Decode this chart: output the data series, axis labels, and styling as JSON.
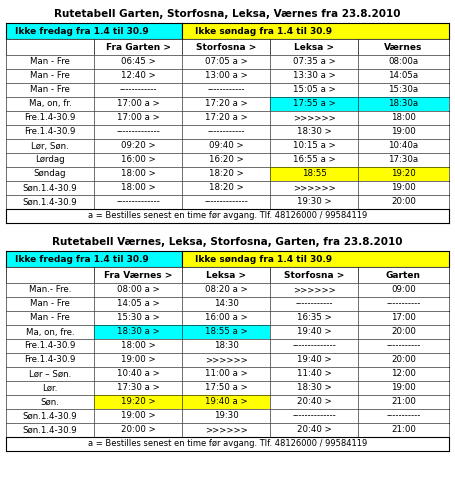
{
  "table1": {
    "title": "Rutetabell Garten, Storfosna, Leksa, Værnes fra 23.8.2010",
    "header_row1": [
      {
        "text": "Ikke fredag fra 1.4 til 30.9",
        "bg": "#00FFFF",
        "color": "black"
      },
      {
        "text": "Ikke søndag fra 1.4 til 30.9",
        "bg": "#FFFF00",
        "color": "black"
      }
    ],
    "header_row2": [
      "",
      "Fra Garten >",
      "Storfosna >",
      "Leksa >",
      "Værnes"
    ],
    "rows": [
      [
        "Man - Fre",
        "06:45 >",
        "07:05 a >",
        "07:35 a >",
        "08:00a"
      ],
      [
        "Man - Fre",
        "12:40 >",
        "13:00 a >",
        "13:30 a >",
        "14:05a"
      ],
      [
        "Man - Fre",
        "------------",
        "------------",
        "15:05 a >",
        "15:30a"
      ],
      [
        "Ma, on, fr.",
        "17:00 a >",
        "17:20 a >",
        {
          "text": "17:55 a >",
          "bg": "#00FFFF"
        },
        {
          "text": "18:30a",
          "bg": "#00FFFF"
        }
      ],
      [
        "Fre.1.4-30.9",
        "17:00 a >",
        "17:20 a >",
        ">>>>>>",
        "18:00"
      ],
      [
        "Fre.1.4-30.9",
        "--------------",
        "------------",
        "18:30 >",
        "19:00"
      ],
      [
        "Lør, Søn.",
        "09:20 >",
        "09:40 >",
        "10:15 a >",
        "10:40a"
      ],
      [
        "Lørdag",
        "16:00 >",
        "16:20 >",
        "16:55 a >",
        "17:30a"
      ],
      [
        "Søndag",
        "18:00 >",
        "18:20 >",
        {
          "text": "18:55",
          "bg": "#FFFF00"
        },
        {
          "text": "19:20",
          "bg": "#FFFF00"
        }
      ],
      [
        "Søn.1.4-30.9",
        "18:00 >",
        "18:20 >",
        ">>>>>>",
        "19:00"
      ],
      [
        "Søn.1.4-30.9",
        "--------------",
        "--------------",
        "19:30 >",
        "20:00"
      ]
    ],
    "footer": "a = Bestilles senest en time før avgang. Tlf. 48126000 / 99584119"
  },
  "table2": {
    "title": "Rutetabell Værnes, Leksa, Storfosna, Garten, fra 23.8.2010",
    "header_row1": [
      {
        "text": "Ikke fredag fra 1.4 til 30.9",
        "bg": "#00FFFF",
        "color": "black"
      },
      {
        "text": "Ikke søndag fra 1.4 til 30.9",
        "bg": "#FFFF00",
        "color": "black"
      }
    ],
    "header_row2": [
      "",
      "Fra Værnes >",
      "Leksa >",
      "Storfosna >",
      "Garten"
    ],
    "rows": [
      [
        "Man.- Fre.",
        "08:00 a >",
        "08:20 a >",
        ">>>>>>",
        "09:00"
      ],
      [
        "Man - Fre",
        "14:05 a >",
        "14:30",
        "------------",
        "-----------"
      ],
      [
        "Man - Fre",
        "15:30 a >",
        "16:00 a >",
        "16:35 >",
        "17:00"
      ],
      [
        "Ma, on, fre.",
        {
          "text": "18:30 a >",
          "bg": "#00FFFF"
        },
        {
          "text": "18:55 a >",
          "bg": "#00FFFF"
        },
        "19:40 >",
        "20:00"
      ],
      [
        "Fre.1.4-30.9",
        "18:00 >",
        "18:30",
        "--------------",
        "-----------"
      ],
      [
        "Fre.1.4-30.9",
        "19:00 >",
        ">>>>>>",
        "19:40 >",
        "20:00"
      ],
      [
        "Lør – Søn.",
        "10:40 a >",
        "11:00 a >",
        "11:40 >",
        "12:00"
      ],
      [
        "Lør.",
        "17:30 a >",
        "17:50 a >",
        "18:30 >",
        "19:00"
      ],
      [
        "Søn.",
        {
          "text": "19:20 >",
          "bg": "#FFFF00"
        },
        {
          "text": "19:40 a >",
          "bg": "#FFFF00"
        },
        "20:40 >",
        "21:00"
      ],
      [
        "Søn.1.4-30.9",
        "19:00 >",
        "19:30",
        "--------------",
        "-----------"
      ],
      [
        "Søn.1.4-30.9",
        "20:00 >",
        ">>>>>>",
        "20:40 >",
        "21:00"
      ]
    ],
    "footer": "a = Bestilles senest en time før avgang. Tlf. 48126000 / 99584119"
  },
  "fig_width": 4.55,
  "fig_height": 4.94,
  "dpi": 100
}
